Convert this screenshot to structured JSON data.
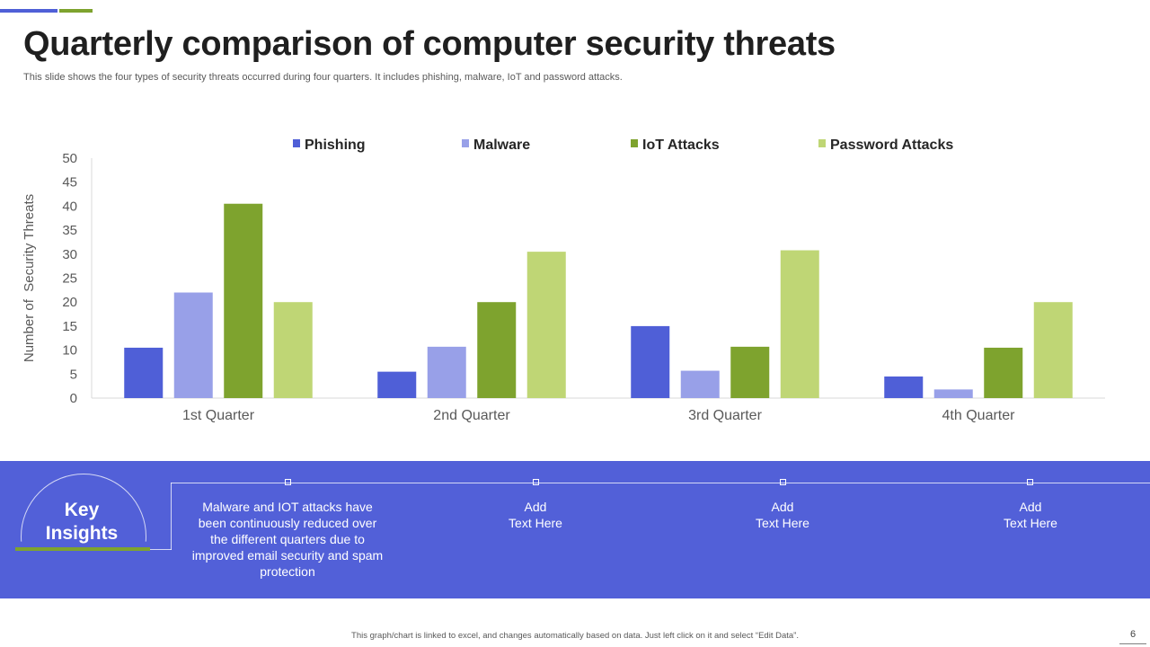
{
  "colors": {
    "accent_blue": "#4f5fd7",
    "accent_green": "#7ea32e",
    "band": "#5260d8"
  },
  "header": {
    "title": "Quarterly comparison of computer security threats",
    "subtitle": "This slide shows the four types of security threats occurred during four quarters. It includes phishing, malware, IoT and password attacks."
  },
  "chart_data": {
    "type": "bar",
    "title": "",
    "xlabel": "",
    "ylabel": "Number of  Security Threats",
    "ylim": [
      0,
      50
    ],
    "yticks": [
      0,
      5,
      10,
      15,
      20,
      25,
      30,
      35,
      40,
      45,
      50
    ],
    "grid": false,
    "legend_position": "top",
    "categories": [
      "1st Quarter",
      "2nd Quarter",
      "3rd Quarter",
      "4th Quarter"
    ],
    "series": [
      {
        "name": "Phishing",
        "color": "#4f5fd7",
        "values": [
          10.5,
          5.5,
          15,
          4.5
        ]
      },
      {
        "name": "Malware",
        "color": "#98a0e8",
        "values": [
          22,
          10.7,
          5.7,
          1.8
        ]
      },
      {
        "name": "IoT Attacks",
        "color": "#7ea32e",
        "values": [
          40.5,
          20,
          10.7,
          10.5
        ]
      },
      {
        "name": "Password Attacks",
        "color": "#bfd675",
        "values": [
          20,
          30.5,
          30.8,
          20
        ]
      }
    ]
  },
  "insights": {
    "heading_line1": "Key",
    "heading_line2": "Insights",
    "items": [
      "Malware and IOT attacks have been continuously reduced over the different quarters due to improved email security and spam protection",
      "Add\nText Here",
      "Add\nText Here",
      "Add\nText Here"
    ]
  },
  "footer": {
    "note": "This graph/chart is linked to excel, and changes automatically based on data. Just left click on it and select “Edit Data”.",
    "page_number": "6"
  }
}
